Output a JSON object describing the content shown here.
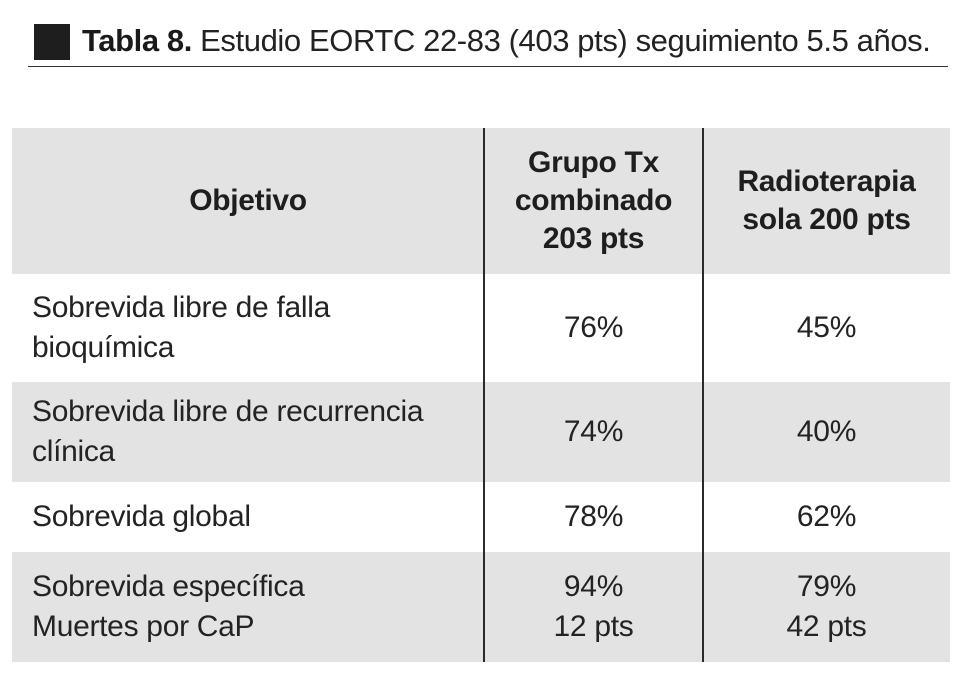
{
  "caption": {
    "label": "Tabla 8.",
    "text": "Estudio EORTC 22-83 (403 pts) seguimiento 5.5 años."
  },
  "table": {
    "headers": {
      "objetivo": "Objetivo",
      "combined": [
        "Grupo Tx",
        "combinado",
        "203 pts"
      ],
      "radio": [
        "Radioterapia",
        "sola 200 pts"
      ]
    },
    "rows": [
      {
        "label": [
          "Sobrevida libre de falla",
          "bioquímica"
        ],
        "combined": [
          "76%"
        ],
        "radio": [
          "45%"
        ]
      },
      {
        "label": [
          "Sobrevida libre de recurrencia",
          "clínica"
        ],
        "combined": [
          "74%"
        ],
        "radio": [
          "40%"
        ]
      },
      {
        "label": [
          "Sobrevida global"
        ],
        "combined": [
          "78%"
        ],
        "radio": [
          "62%"
        ]
      },
      {
        "label": [
          "Sobrevida específica",
          "Muertes por CaP"
        ],
        "combined": [
          "94%",
          "12 pts"
        ],
        "radio": [
          "79%",
          "42 pts"
        ]
      }
    ]
  }
}
